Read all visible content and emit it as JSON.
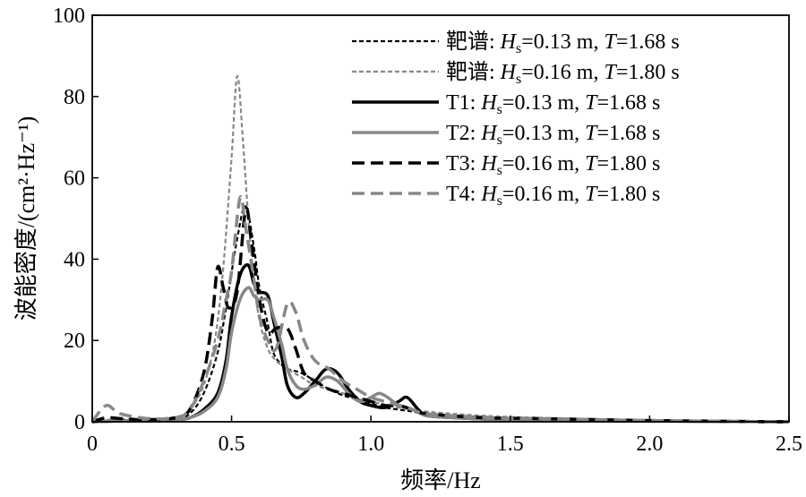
{
  "chart_data": {
    "type": "line",
    "title": "",
    "xlabel": "频率/Hz",
    "ylabel": "波能密度/(cm²·Hz⁻¹)",
    "xlim": [
      0,
      2.5
    ],
    "ylim": [
      0,
      100
    ],
    "xticks": [
      "0",
      "0.5",
      "1.0",
      "1.5",
      "2.0",
      "2.5"
    ],
    "yticks": [
      "0",
      "20",
      "40",
      "60",
      "80",
      "100"
    ],
    "legend_position": "top-right",
    "grid": false,
    "series": [
      {
        "name": "靶谱: Hs=0.13 m, T=1.68 s",
        "legend_prefix": "靶谱: ",
        "legend_sub": "s",
        "legend_suffix": "=0.13 m, ",
        "legend_t": "=1.68 s",
        "color": "#000000",
        "dash": "short",
        "width": 2.2,
        "x": [
          0,
          0.05,
          0.1,
          0.2,
          0.3,
          0.35,
          0.4,
          0.45,
          0.48,
          0.52,
          0.55,
          0.58,
          0.6,
          0.63,
          0.65,
          0.68,
          0.7,
          0.75,
          0.8,
          0.85,
          0.9,
          0.95,
          1.0,
          1.05,
          1.1,
          1.15,
          1.2,
          1.4,
          1.6,
          2.0,
          2.5
        ],
        "y": [
          0,
          0.3,
          0.5,
          0.5,
          0.8,
          2,
          7,
          17,
          28,
          45,
          53,
          43,
          33,
          24,
          17,
          14,
          13,
          12,
          10,
          8,
          6.5,
          5.5,
          4.5,
          3.5,
          3,
          2.5,
          2,
          1.2,
          0.8,
          0.3,
          0
        ]
      },
      {
        "name": "靶谱: Hs=0.16 m, T=1.80 s",
        "legend_prefix": "靶谱: ",
        "legend_sub": "s",
        "legend_suffix": "=0.16 m, ",
        "legend_t": "=1.80 s",
        "color": "#888888",
        "dash": "short",
        "width": 2.2,
        "x": [
          0,
          0.05,
          0.1,
          0.2,
          0.3,
          0.35,
          0.4,
          0.44,
          0.47,
          0.5,
          0.52,
          0.54,
          0.56,
          0.58,
          0.6,
          0.63,
          0.66,
          0.7,
          0.75,
          0.8,
          0.9,
          1.0,
          1.1,
          1.2,
          1.4,
          1.6,
          2.0,
          2.5
        ],
        "y": [
          0,
          0.4,
          0.6,
          0.7,
          1.2,
          3,
          9,
          20,
          38,
          65,
          85,
          70,
          50,
          35,
          25,
          18,
          15,
          13,
          11,
          9,
          7,
          5,
          3.5,
          2.5,
          1.5,
          1,
          0.4,
          0
        ]
      },
      {
        "name": "T1: Hs=0.13 m, T=1.68 s",
        "legend_prefix": "T1: ",
        "legend_sub": "s",
        "legend_suffix": "=0.13 m, ",
        "legend_t": "=1.68 s",
        "color": "#000000",
        "dash": "solid",
        "width": 3.5,
        "x": [
          0,
          0.1,
          0.2,
          0.3,
          0.35,
          0.4,
          0.45,
          0.48,
          0.5,
          0.53,
          0.56,
          0.58,
          0.6,
          0.63,
          0.65,
          0.68,
          0.7,
          0.73,
          0.76,
          0.8,
          0.84,
          0.88,
          0.92,
          0.96,
          1.0,
          1.05,
          1.1,
          1.13,
          1.17,
          1.2,
          1.3,
          1.5,
          2.0,
          2.5
        ],
        "y": [
          0,
          0.2,
          0.3,
          0.5,
          1,
          3,
          7,
          15,
          26,
          36,
          38.5,
          34,
          32,
          31,
          25,
          16,
          9,
          6,
          7,
          10,
          13,
          12,
          8,
          5,
          4,
          3.5,
          5,
          6,
          3,
          1.5,
          1,
          0.5,
          0.2,
          0
        ]
      },
      {
        "name": "T2: Hs=0.13 m, T=1.68 s",
        "legend_prefix": "T2: ",
        "legend_sub": "s",
        "legend_suffix": "=0.13 m, ",
        "legend_t": "=1.68 s",
        "color": "#888888",
        "dash": "solid",
        "width": 3.5,
        "x": [
          0,
          0.1,
          0.2,
          0.3,
          0.35,
          0.4,
          0.45,
          0.48,
          0.5,
          0.53,
          0.56,
          0.58,
          0.6,
          0.63,
          0.65,
          0.68,
          0.7,
          0.73,
          0.76,
          0.8,
          0.84,
          0.88,
          0.92,
          0.96,
          1.0,
          1.03,
          1.06,
          1.1,
          1.15,
          1.2,
          1.3,
          1.5,
          2.0,
          2.5
        ],
        "y": [
          0,
          0.2,
          0.3,
          0.5,
          1,
          2.5,
          6,
          13,
          22,
          30,
          33,
          31,
          30,
          30,
          26,
          19,
          13,
          9,
          8,
          9,
          11,
          10,
          7,
          5,
          6,
          7,
          6,
          4,
          3,
          1.5,
          1,
          0.5,
          0.2,
          0
        ]
      },
      {
        "name": "T3: Hs=0.16 m, T=1.80 s",
        "legend_prefix": "T3: ",
        "legend_sub": "s",
        "legend_suffix": "=0.16 m, ",
        "legend_t": "=1.80 s",
        "color": "#000000",
        "dash": "long",
        "width": 3.5,
        "x": [
          0,
          0.05,
          0.1,
          0.2,
          0.3,
          0.35,
          0.4,
          0.43,
          0.45,
          0.47,
          0.49,
          0.52,
          0.55,
          0.57,
          0.6,
          0.63,
          0.66,
          0.7,
          0.73,
          0.76,
          0.8,
          0.85,
          0.9,
          0.95,
          1.0,
          1.05,
          1.1,
          1.15,
          1.2,
          1.4,
          1.6,
          2.0,
          2.5
        ],
        "y": [
          0,
          1,
          0.8,
          0.5,
          1,
          3,
          12,
          25,
          38,
          33,
          28,
          32,
          52,
          45,
          30,
          22,
          23,
          23,
          18,
          12,
          10,
          8,
          7,
          6,
          5,
          4,
          4,
          3,
          2,
          1,
          0.8,
          0.3,
          0
        ]
      },
      {
        "name": "T4: Hs=0.16 m, T=1.80 s",
        "legend_prefix": "T4: ",
        "legend_sub": "s",
        "legend_suffix": "=0.16 m, ",
        "legend_t": "=1.80 s",
        "color": "#888888",
        "dash": "long",
        "width": 3.5,
        "x": [
          0,
          0.05,
          0.1,
          0.2,
          0.3,
          0.35,
          0.4,
          0.45,
          0.48,
          0.5,
          0.53,
          0.55,
          0.58,
          0.6,
          0.63,
          0.66,
          0.7,
          0.73,
          0.76,
          0.8,
          0.85,
          0.9,
          0.95,
          1.0,
          1.05,
          1.1,
          1.15,
          1.2,
          1.4,
          1.6,
          2.0,
          2.5
        ],
        "y": [
          0,
          4,
          2,
          0.8,
          1,
          3,
          10,
          20,
          30,
          37,
          55,
          48,
          35,
          26,
          20,
          18,
          29,
          27,
          20,
          15,
          13,
          10,
          8,
          6,
          5,
          4,
          3,
          2,
          1,
          0.8,
          0.3,
          0
        ]
      }
    ]
  }
}
